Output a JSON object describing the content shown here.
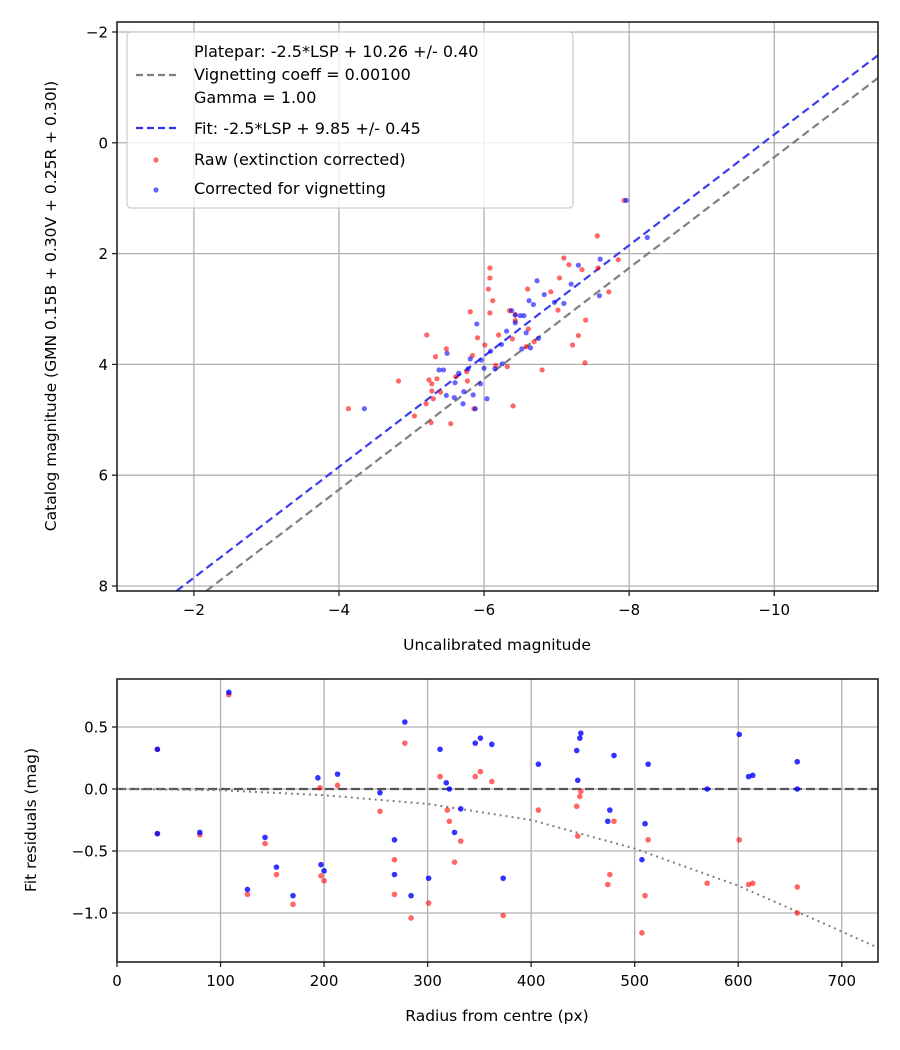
{
  "chart_data": [
    {
      "type": "scatter",
      "title": "",
      "xlabel": "Uncalibrated magnitude",
      "ylabel": "Catalog magnitude (GMN 0.15B + 0.30V + 0.25R + 0.30I)",
      "xlim": [
        -0.94,
        -11.43
      ],
      "ylim": [
        8.09,
        -2.18
      ],
      "x_ticks": [
        -2,
        -4,
        -6,
        -8,
        -10
      ],
      "x_tick_labels": [
        "−2",
        "−4",
        "−6",
        "−8",
        "−10"
      ],
      "y_ticks": [
        -2,
        0,
        2,
        4,
        6,
        8
      ],
      "y_tick_labels": [
        "−2",
        "0",
        "2",
        "4",
        "6",
        "8"
      ],
      "grid": true,
      "legend_position": "top-left",
      "lines": [
        {
          "name": "Platepar: -2.5*LSP + 10.26 +/- 0.40\nVignetting coeff = 0.00100\nGamma = 1.00",
          "slope": 1,
          "intercept": 10.26,
          "color": "#808080",
          "style": "dashed"
        },
        {
          "name": "Fit: -2.5*LSP + 9.85 +/- 0.45",
          "slope": 1,
          "intercept": 9.85,
          "color": "#3333ee",
          "style": "dashed"
        }
      ],
      "legend": [
        {
          "label_lines": [
            "Platepar: -2.5*LSP + 10.26 +/- 0.40",
            "Vignetting coeff = 0.00100",
            "Gamma = 1.00"
          ],
          "marker": "gray-dash"
        },
        {
          "label_lines": [
            "Fit: -2.5*LSP + 9.85 +/- 0.45"
          ],
          "marker": "blue-dash"
        },
        {
          "label_lines": [
            "Raw (extinction corrected)"
          ],
          "marker": "red-dot"
        },
        {
          "label_lines": [
            "Corrected for vignetting"
          ],
          "marker": "blue-dot"
        }
      ],
      "series": [
        {
          "name": "Raw (extinction corrected)",
          "color": "#ff0000",
          "points": [
            [
              -4.13,
              4.8
            ],
            [
              -4.82,
              4.3
            ],
            [
              -5.21,
              3.47
            ],
            [
              -5.33,
              3.86
            ],
            [
              -5.24,
              4.28
            ],
            [
              -5.48,
              3.72
            ],
            [
              -5.28,
              4.35
            ],
            [
              -5.61,
              4.22
            ],
            [
              -5.04,
              4.93
            ],
            [
              -5.3,
              4.62
            ],
            [
              -5.2,
              4.71
            ],
            [
              -5.28,
              4.48
            ],
            [
              -5.27,
              5.05
            ],
            [
              -5.4,
              4.5
            ],
            [
              -5.54,
              5.07
            ],
            [
              -5.77,
              4.3
            ],
            [
              -5.81,
              3.05
            ],
            [
              -5.91,
              3.52
            ],
            [
              -5.84,
              3.84
            ],
            [
              -6.08,
              3.07
            ],
            [
              -6.08,
              2.26
            ],
            [
              -6.08,
              2.44
            ],
            [
              -6.06,
              2.64
            ],
            [
              -6.12,
              2.85
            ],
            [
              -6.2,
              3.47
            ],
            [
              -6.32,
              4.04
            ],
            [
              -6.4,
              4.75
            ],
            [
              -6.01,
              3.65
            ],
            [
              -5.35,
              4.26
            ],
            [
              -5.76,
              4.13
            ],
            [
              -6.16,
              4.02
            ],
            [
              -6.43,
              3.21
            ],
            [
              -6.35,
              3.03
            ],
            [
              -6.61,
              3.36
            ],
            [
              -6.69,
              3.59
            ],
            [
              -6.8,
              4.1
            ],
            [
              -6.92,
              2.69
            ],
            [
              -7.04,
              2.44
            ],
            [
              -7.17,
              2.2
            ],
            [
              -7.39,
              3.97
            ],
            [
              -7.72,
              2.69
            ],
            [
              -7.85,
              2.11
            ],
            [
              -7.02,
              3.02
            ],
            [
              -7.3,
              3.48
            ],
            [
              -7.35,
              2.29
            ],
            [
              -7.57,
              2.26
            ],
            [
              -7.4,
              3.2
            ],
            [
              -7.22,
              3.65
            ],
            [
              -5.86,
              4.8
            ],
            [
              -6.58,
              3.68
            ],
            [
              -6.43,
              3.1
            ],
            [
              -7.93,
              1.04
            ],
            [
              -6.6,
              2.64
            ],
            [
              -7.1,
              2.08
            ],
            [
              -6.39,
              3.54
            ],
            [
              -7.56,
              1.68
            ]
          ]
        },
        {
          "name": "Corrected for vignetting",
          "color": "#0000ff",
          "points": [
            [
              -4.35,
              4.8
            ],
            [
              -5.38,
              4.1
            ],
            [
              -5.49,
              3.8
            ],
            [
              -5.48,
              4.56
            ],
            [
              -5.78,
              4.08
            ],
            [
              -5.81,
              3.9
            ],
            [
              -5.9,
              3.27
            ],
            [
              -5.59,
              4.6
            ],
            [
              -5.71,
              4.71
            ],
            [
              -5.6,
              4.33
            ],
            [
              -6.0,
              4.07
            ],
            [
              -6.09,
              3.76
            ],
            [
              -6.15,
              4.08
            ],
            [
              -6.31,
              3.4
            ],
            [
              -6.43,
              3.25
            ],
            [
              -6.5,
              3.12
            ],
            [
              -6.52,
              3.72
            ],
            [
              -6.58,
              3.43
            ],
            [
              -6.62,
              2.85
            ],
            [
              -6.83,
              2.74
            ],
            [
              -6.73,
              2.49
            ],
            [
              -6.38,
              3.03
            ],
            [
              -5.96,
              3.92
            ],
            [
              -5.65,
              4.16
            ],
            [
              -6.68,
              2.92
            ],
            [
              -7.1,
              2.9
            ],
            [
              -7.2,
              2.55
            ],
            [
              -7.3,
              2.21
            ],
            [
              -7.6,
              2.1
            ],
            [
              -7.59,
              2.76
            ],
            [
              -7.96,
              1.04
            ],
            [
              -8.25,
              1.71
            ],
            [
              -5.88,
              4.8
            ],
            [
              -6.04,
              4.62
            ],
            [
              -5.72,
              4.49
            ],
            [
              -6.24,
              3.64
            ],
            [
              -6.97,
              2.88
            ],
            [
              -6.64,
              3.7
            ],
            [
              -5.44,
              4.1
            ],
            [
              -6.43,
              3.11
            ],
            [
              -6.75,
              3.53
            ],
            [
              -5.85,
              4.55
            ],
            [
              -5.95,
              4.35
            ],
            [
              -6.25,
              3.99
            ],
            [
              -6.55,
              3.12
            ]
          ]
        }
      ]
    },
    {
      "type": "scatter",
      "title": "",
      "xlabel": "Radius from centre (px)",
      "ylabel": "Fit residuals (mag)",
      "xlim": [
        0,
        735
      ],
      "ylim": [
        -1.395,
        0.887
      ],
      "x_ticks": [
        0,
        100,
        200,
        300,
        400,
        500,
        600,
        700
      ],
      "x_tick_labels": [
        "0",
        "100",
        "200",
        "300",
        "400",
        "500",
        "600",
        "700"
      ],
      "y_ticks": [
        0.5,
        0.0,
        -0.5,
        -1.0
      ],
      "y_tick_labels": [
        "0.5",
        "0.0",
        "−0.5",
        "−1.0"
      ],
      "grid": true,
      "reference_lines": [
        {
          "name": "zero",
          "y": 0,
          "color": "#555555",
          "style": "dashed"
        },
        {
          "name": "vignetting model",
          "color": "#808080",
          "style": "dotted",
          "curve": [
            [
              0,
              0.0
            ],
            [
              100,
              -0.01
            ],
            [
              200,
              -0.05
            ],
            [
              300,
              -0.12
            ],
            [
              400,
              -0.25
            ],
            [
              500,
              -0.48
            ],
            [
              600,
              -0.78
            ],
            [
              660,
              -1.0
            ],
            [
              735,
              -1.28
            ]
          ]
        }
      ],
      "series": [
        {
          "name": "Raw (extinction corrected)",
          "color": "#ff0000",
          "points": [
            [
              39,
              -0.36
            ],
            [
              39,
              0.32
            ],
            [
              80,
              -0.37
            ],
            [
              108,
              0.76
            ],
            [
              126,
              -0.85
            ],
            [
              143,
              -0.44
            ],
            [
              154,
              -0.69
            ],
            [
              170,
              -0.93
            ],
            [
              196,
              0.01
            ],
            [
              197,
              -0.7
            ],
            [
              200,
              -0.74
            ],
            [
              213,
              0.03
            ],
            [
              254,
              -0.18
            ],
            [
              268,
              -0.57
            ],
            [
              268,
              -0.85
            ],
            [
              278,
              0.37
            ],
            [
              284,
              -1.04
            ],
            [
              301,
              -0.92
            ],
            [
              312,
              0.1
            ],
            [
              319,
              -0.17
            ],
            [
              321,
              -0.26
            ],
            [
              326,
              -0.59
            ],
            [
              332,
              -0.42
            ],
            [
              346,
              0.1
            ],
            [
              351,
              0.14
            ],
            [
              362,
              0.06
            ],
            [
              373,
              -1.02
            ],
            [
              407,
              -0.17
            ],
            [
              444,
              -0.14
            ],
            [
              445,
              -0.38
            ],
            [
              447,
              -0.06
            ],
            [
              448,
              -0.02
            ],
            [
              474,
              -0.77
            ],
            [
              476,
              -0.69
            ],
            [
              480,
              -0.26
            ],
            [
              507,
              -1.16
            ],
            [
              510,
              -0.86
            ],
            [
              513,
              -0.41
            ],
            [
              570,
              -0.76
            ],
            [
              601,
              -0.41
            ],
            [
              610,
              -0.77
            ],
            [
              614,
              -0.76
            ],
            [
              657,
              -0.79
            ],
            [
              657,
              -1.0
            ]
          ]
        },
        {
          "name": "Corrected for vignetting",
          "color": "#0000ff",
          "points": [
            [
              39,
              -0.36
            ],
            [
              39,
              0.32
            ],
            [
              80,
              -0.35
            ],
            [
              108,
              0.78
            ],
            [
              126,
              -0.81
            ],
            [
              143,
              -0.39
            ],
            [
              154,
              -0.63
            ],
            [
              170,
              -0.86
            ],
            [
              194,
              0.09
            ],
            [
              197,
              -0.61
            ],
            [
              200,
              -0.66
            ],
            [
              213,
              0.12
            ],
            [
              254,
              -0.03
            ],
            [
              268,
              -0.41
            ],
            [
              268,
              -0.69
            ],
            [
              278,
              0.54
            ],
            [
              284,
              -0.86
            ],
            [
              301,
              -0.72
            ],
            [
              312,
              0.32
            ],
            [
              318,
              0.05
            ],
            [
              321,
              0.0
            ],
            [
              326,
              -0.35
            ],
            [
              332,
              -0.16
            ],
            [
              346,
              0.37
            ],
            [
              351,
              0.41
            ],
            [
              362,
              0.36
            ],
            [
              373,
              -0.72
            ],
            [
              407,
              0.2
            ],
            [
              444,
              0.31
            ],
            [
              445,
              0.07
            ],
            [
              447,
              0.41
            ],
            [
              448,
              0.45
            ],
            [
              474,
              -0.26
            ],
            [
              476,
              -0.17
            ],
            [
              480,
              0.27
            ],
            [
              507,
              -0.57
            ],
            [
              510,
              -0.28
            ],
            [
              513,
              0.2
            ],
            [
              570,
              0.0
            ],
            [
              601,
              0.44
            ],
            [
              610,
              0.1
            ],
            [
              614,
              0.11
            ],
            [
              657,
              0.22
            ],
            [
              657,
              0.0
            ]
          ]
        }
      ]
    }
  ]
}
